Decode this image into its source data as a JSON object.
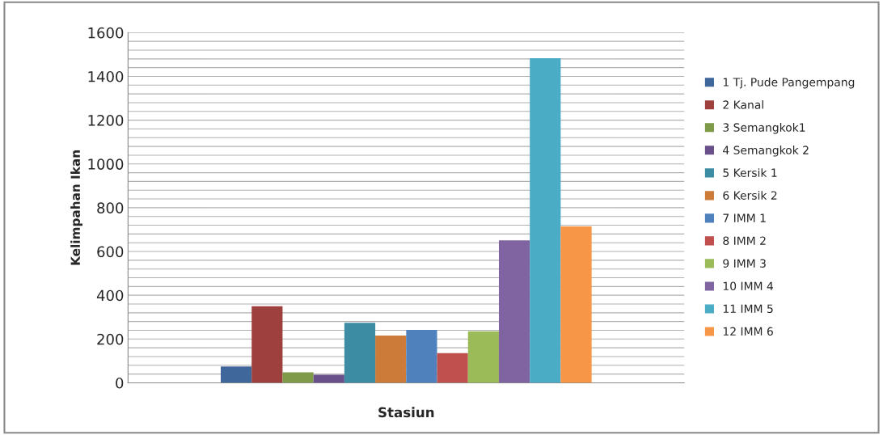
{
  "chart_data": {
    "type": "bar",
    "xlabel": "Stasiun",
    "ylabel": "Kelimpahan Ikan",
    "categories": [
      null
    ],
    "series": [
      {
        "name": "1 Tj. Pude Pangempang",
        "color": "#3f679b",
        "values": [
          75
        ]
      },
      {
        "name": "2 Kanal",
        "color": "#9e403d",
        "values": [
          350
        ]
      },
      {
        "name": "3 Semangkok1",
        "color": "#7f9a48",
        "values": [
          48
        ]
      },
      {
        "name": "4 Semangkok 2",
        "color": "#69508a",
        "values": [
          37
        ]
      },
      {
        "name": "5 Kersik 1",
        "color": "#3c8ca3",
        "values": [
          274
        ]
      },
      {
        "name": "6 Kersik 2",
        "color": "#cc7b38",
        "values": [
          216
        ]
      },
      {
        "name": "7 IMM 1",
        "color": "#4f81bd",
        "values": [
          242
        ]
      },
      {
        "name": "8 IMM 2",
        "color": "#c0504d",
        "values": [
          136
        ]
      },
      {
        "name": "9 IMM 3",
        "color": "#9bbb59",
        "values": [
          235
        ]
      },
      {
        "name": "10 IMM 4",
        "color": "#8064a2",
        "values": [
          651
        ]
      },
      {
        "name": "11 IMM 5",
        "color": "#4bacc6",
        "values": [
          1483
        ]
      },
      {
        "name": "12 IMM 6",
        "color": "#f79646",
        "values": [
          715
        ]
      }
    ],
    "ylim": [
      0,
      1600
    ],
    "yticks": [
      0,
      {
        "value": 40,
        "label": null
      },
      {
        "value": 80,
        "label": null
      },
      {
        "value": 120,
        "label": null
      },
      {
        "value": 160,
        "label": null
      },
      200,
      {
        "value": 240,
        "label": null
      },
      {
        "value": 280,
        "label": null
      },
      {
        "value": 320,
        "label": null
      },
      {
        "value": 360,
        "label": null
      },
      400,
      {
        "value": 440,
        "label": null
      },
      {
        "value": 480,
        "label": null
      },
      {
        "value": 520,
        "label": null
      },
      {
        "value": 560,
        "label": null
      },
      600,
      {
        "value": 640,
        "label": null
      },
      {
        "value": 680,
        "label": null
      },
      {
        "value": 720,
        "label": null
      },
      {
        "value": 760,
        "label": null
      },
      800,
      {
        "value": 840,
        "label": null
      },
      {
        "value": 880,
        "label": null
      },
      {
        "value": 920,
        "label": null
      },
      {
        "value": 960,
        "label": null
      },
      1000,
      {
        "value": 1040,
        "label": null
      },
      {
        "value": 1080,
        "label": null
      },
      {
        "value": 1120,
        "label": null
      },
      {
        "value": 1160,
        "label": null
      },
      1200,
      {
        "value": 1240,
        "label": null
      },
      {
        "value": 1280,
        "label": null
      },
      {
        "value": 1320,
        "label": null
      },
      {
        "value": 1360,
        "label": null
      },
      1400,
      {
        "value": 1440,
        "label": null
      },
      {
        "value": 1480,
        "label": null
      },
      {
        "value": 1520,
        "label": null
      },
      {
        "value": 1560,
        "label": null
      },
      1600
    ],
    "grid": "y",
    "legend": "right"
  }
}
